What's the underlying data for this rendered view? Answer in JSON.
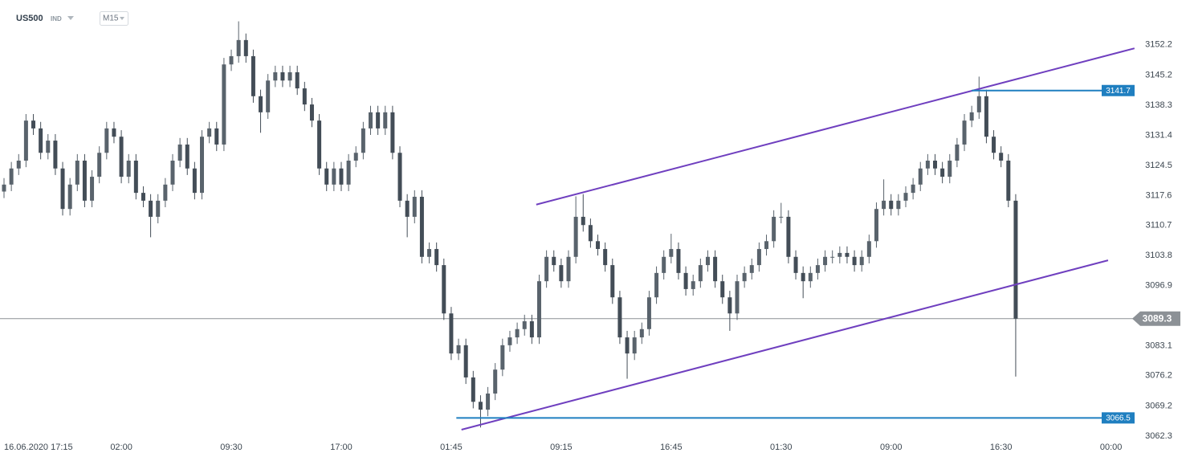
{
  "chart_data": {
    "type": "candlestick",
    "symbol": "US500",
    "symbol_type": "IND",
    "timeframe": "M15",
    "categories": [
      "16.06.2020 17:15",
      null,
      null,
      null,
      null,
      null,
      null,
      null,
      null,
      null,
      null,
      null,
      null,
      null,
      null,
      null,
      "02:00",
      null,
      null,
      null,
      null,
      null,
      null,
      null,
      null,
      null,
      null,
      null,
      null,
      null,
      null,
      "09:30",
      null,
      null,
      null,
      null,
      null,
      null,
      null,
      null,
      null,
      null,
      null,
      null,
      null,
      null,
      "17:00",
      null,
      null,
      null,
      null,
      null,
      null,
      null,
      null,
      null,
      null,
      null,
      null,
      null,
      null,
      "01:45",
      null,
      null,
      null,
      null,
      null,
      null,
      null,
      null,
      null,
      null,
      null,
      null,
      null,
      null,
      "09:15",
      null,
      null,
      null,
      null,
      null,
      null,
      null,
      null,
      null,
      null,
      null,
      null,
      null,
      null,
      "16:45",
      null,
      null,
      null,
      null,
      null,
      null,
      null,
      null,
      null,
      null,
      null,
      null,
      null,
      null,
      "01:30",
      null,
      null,
      null,
      null,
      null,
      null,
      null,
      null,
      null,
      null,
      null,
      null,
      null,
      null,
      "09:00",
      null,
      null,
      null,
      null,
      null,
      null,
      null,
      null,
      null,
      null,
      null,
      null,
      null,
      null,
      "16:30",
      null,
      null,
      null,
      null,
      null,
      null,
      null,
      null,
      null,
      null,
      null,
      null,
      null,
      null,
      "00:00"
    ],
    "open": [
      3118.5,
      3120.1,
      3123.8,
      3125.6,
      3134.8,
      3133.0,
      3127.4,
      3130.2,
      3123.8,
      3114.5,
      3120.1,
      3125.6,
      3116.4,
      3121.9,
      3127.4,
      3133.0,
      3131.1,
      3121.9,
      3125.6,
      3118.2,
      3116.4,
      3112.7,
      3116.4,
      3120.1,
      3125.6,
      3129.3,
      3123.8,
      3118.2,
      3131.1,
      3133.0,
      3129.3,
      3147.7,
      3149.6,
      3153.3,
      3149.6,
      3140.4,
      3136.7,
      3144.0,
      3145.9,
      3144.0,
      3145.9,
      3142.2,
      3138.5,
      3134.8,
      3123.8,
      3120.1,
      3123.8,
      3120.1,
      3125.6,
      3127.4,
      3133.0,
      3136.7,
      3133.0,
      3136.7,
      3127.4,
      3116.4,
      3112.7,
      3117.3,
      3103.5,
      3105.3,
      3101.6,
      3090.5,
      3081.3,
      3083.2,
      3075.8,
      3070.2,
      3068.4,
      3072.1,
      3077.6,
      3083.2,
      3085.0,
      3086.9,
      3088.7,
      3085.0,
      3097.9,
      3103.5,
      3101.6,
      3097.9,
      3103.5,
      3112.7,
      3110.8,
      3107.1,
      3105.3,
      3101.6,
      3094.2,
      3085.0,
      3081.3,
      3085.0,
      3086.9,
      3094.2,
      3099.8,
      3103.5,
      3105.3,
      3099.8,
      3096.1,
      3097.9,
      3101.6,
      3103.5,
      3097.9,
      3094.2,
      3090.5,
      3097.9,
      3099.8,
      3101.6,
      3105.3,
      3107.1,
      3112.7,
      3112.7,
      3103.5,
      3099.8,
      3097.9,
      3099.8,
      3101.6,
      3103.5,
      3103.5,
      3104.4,
      3103.5,
      3101.6,
      3103.5,
      3107.1,
      3114.5,
      3116.4,
      3114.5,
      3116.4,
      3118.2,
      3120.1,
      3123.8,
      3125.6,
      3123.8,
      3121.9,
      3125.6,
      3129.3,
      3134.8,
      3136.7,
      3140.4,
      3131.1,
      3127.4,
      3125.6,
      3116.4,
      null,
      null,
      null,
      null,
      null,
      null,
      null,
      null,
      null,
      null,
      null,
      null,
      null
    ],
    "high": [
      3121.6,
      3125.3,
      3127.1,
      3136.3,
      3136.3,
      3134.5,
      3131.7,
      3131.7,
      3125.3,
      3121.6,
      3127.1,
      3127.1,
      3123.4,
      3128.9,
      3134.5,
      3134.5,
      3132.6,
      3127.1,
      3127.1,
      3119.7,
      3117.9,
      3117.9,
      3121.6,
      3127.1,
      3130.8,
      3130.8,
      3125.3,
      3132.6,
      3134.5,
      3134.5,
      3149.2,
      3151.1,
      3157.6,
      3154.8,
      3151.1,
      3141.9,
      3145.5,
      3147.4,
      3147.4,
      3147.4,
      3147.4,
      3143.7,
      3140.0,
      3136.3,
      3125.3,
      3125.3,
      3125.3,
      3127.1,
      3128.9,
      3134.5,
      3138.2,
      3138.2,
      3138.2,
      3138.2,
      3128.9,
      3117.9,
      3118.8,
      3118.8,
      3106.8,
      3106.8,
      3103.1,
      3092.0,
      3084.7,
      3084.7,
      3077.3,
      3071.7,
      3073.6,
      3079.1,
      3084.7,
      3086.5,
      3088.4,
      3090.2,
      3090.2,
      3099.4,
      3105.0,
      3105.0,
      3103.1,
      3105.0,
      3117.4,
      3117.9,
      3112.3,
      3108.6,
      3106.8,
      3103.1,
      3095.7,
      3086.5,
      3086.5,
      3088.4,
      3095.7,
      3101.3,
      3105.0,
      3108.8,
      3106.8,
      3101.3,
      3099.4,
      3103.1,
      3105.0,
      3105.0,
      3099.4,
      3095.7,
      3099.4,
      3101.3,
      3103.1,
      3106.8,
      3108.6,
      3114.2,
      3115.9,
      3114.2,
      3105.0,
      3101.3,
      3101.3,
      3103.1,
      3105.0,
      3105.0,
      3105.9,
      3105.9,
      3105.0,
      3105.0,
      3108.6,
      3116.0,
      3121.3,
      3117.9,
      3117.9,
      3119.7,
      3121.6,
      3125.3,
      3127.1,
      3127.1,
      3125.3,
      3127.1,
      3130.8,
      3136.3,
      3138.2,
      3144.9,
      3141.9,
      3132.6,
      3128.9,
      3127.1,
      3117.9,
      null,
      null,
      null,
      null,
      null,
      null,
      null,
      null,
      null,
      null,
      null,
      null,
      null
    ],
    "low": [
      3117.0,
      3118.6,
      3122.3,
      3124.1,
      3131.5,
      3125.9,
      3125.9,
      3122.3,
      3113.0,
      3113.0,
      3118.6,
      3114.9,
      3114.9,
      3120.4,
      3125.9,
      3129.6,
      3120.4,
      3120.4,
      3116.7,
      3114.9,
      3108.0,
      3111.2,
      3114.9,
      3118.6,
      3124.1,
      3122.3,
      3116.7,
      3116.7,
      3129.6,
      3127.8,
      3127.8,
      3146.2,
      3148.1,
      3148.1,
      3138.9,
      3132.0,
      3135.2,
      3142.5,
      3142.5,
      3142.5,
      3140.7,
      3137.0,
      3133.3,
      3122.3,
      3118.6,
      3118.6,
      3118.6,
      3118.6,
      3124.1,
      3125.9,
      3131.5,
      3131.5,
      3131.5,
      3125.9,
      3114.9,
      3108.0,
      3111.2,
      3102.0,
      3102.0,
      3100.1,
      3089.0,
      3079.8,
      3079.8,
      3074.3,
      3068.7,
      3064.3,
      3066.9,
      3070.6,
      3076.1,
      3081.7,
      3083.5,
      3085.4,
      3083.5,
      3083.5,
      3096.4,
      3100.1,
      3096.4,
      3096.4,
      3102.0,
      3109.3,
      3105.6,
      3103.8,
      3100.1,
      3092.7,
      3083.5,
      3075.5,
      3079.8,
      3083.5,
      3085.4,
      3092.7,
      3098.3,
      3102.0,
      3098.3,
      3094.6,
      3094.6,
      3096.4,
      3100.1,
      3096.4,
      3092.7,
      3086.5,
      3089.0,
      3096.4,
      3098.3,
      3100.1,
      3103.8,
      3105.6,
      3111.2,
      3102.0,
      3098.3,
      3094.0,
      3096.4,
      3098.3,
      3100.1,
      3102.0,
      3102.0,
      3102.0,
      3100.1,
      3100.1,
      3102.0,
      3105.6,
      3113.0,
      3113.0,
      3113.0,
      3114.9,
      3116.7,
      3118.6,
      3122.3,
      3122.3,
      3120.4,
      3120.4,
      3124.1,
      3127.8,
      3133.3,
      3135.2,
      3129.6,
      3125.9,
      3124.1,
      3114.9,
      3076.0,
      null,
      null,
      null,
      null,
      null,
      null,
      null,
      null,
      null,
      null,
      null,
      null,
      null
    ],
    "close": [
      3120.1,
      3123.8,
      3125.6,
      3134.8,
      3133.0,
      3127.4,
      3130.2,
      3123.8,
      3114.5,
      3120.1,
      3125.6,
      3116.4,
      3121.9,
      3127.4,
      3133.0,
      3131.1,
      3121.9,
      3125.6,
      3118.2,
      3116.4,
      3112.7,
      3116.4,
      3120.1,
      3125.6,
      3129.3,
      3123.8,
      3118.2,
      3131.1,
      3133.0,
      3129.3,
      3147.7,
      3149.6,
      3153.3,
      3149.6,
      3140.4,
      3136.7,
      3144.0,
      3145.9,
      3144.0,
      3145.9,
      3142.2,
      3138.5,
      3134.8,
      3123.8,
      3120.1,
      3123.8,
      3120.1,
      3125.6,
      3127.4,
      3133.0,
      3136.7,
      3133.0,
      3136.7,
      3127.4,
      3116.4,
      3112.7,
      3117.3,
      3103.5,
      3105.3,
      3101.6,
      3090.5,
      3081.3,
      3083.2,
      3075.8,
      3070.2,
      3068.4,
      3072.1,
      3077.6,
      3083.2,
      3085.0,
      3086.9,
      3088.7,
      3085.0,
      3097.9,
      3103.5,
      3101.6,
      3097.9,
      3103.5,
      3112.7,
      3110.8,
      3107.1,
      3105.3,
      3101.6,
      3094.2,
      3085.0,
      3081.3,
      3085.0,
      3086.9,
      3094.2,
      3099.8,
      3103.5,
      3105.3,
      3099.8,
      3096.1,
      3097.9,
      3101.6,
      3103.5,
      3097.9,
      3094.2,
      3090.5,
      3097.9,
      3099.8,
      3101.6,
      3105.3,
      3107.1,
      3112.7,
      3112.7,
      3103.5,
      3099.8,
      3097.9,
      3099.8,
      3101.6,
      3103.5,
      3103.5,
      3104.4,
      3103.5,
      3101.6,
      3103.5,
      3107.1,
      3114.5,
      3116.4,
      3114.5,
      3116.4,
      3118.2,
      3120.1,
      3123.8,
      3125.6,
      3123.8,
      3121.9,
      3125.6,
      3129.3,
      3134.8,
      3136.7,
      3140.4,
      3131.1,
      3127.4,
      3125.6,
      3116.4,
      3089.3,
      null,
      null,
      null,
      null,
      null,
      null,
      null,
      null,
      null,
      null,
      null,
      null,
      null
    ],
    "up_color": "#59636c",
    "down_color": "#434d57",
    "ylim": [
      3061.4,
      3162.5
    ],
    "yticks": [
      3152.2,
      3145.2,
      3138.3,
      3131.4,
      3124.5,
      3117.6,
      3110.7,
      3103.8,
      3096.9,
      3083.1,
      3076.2,
      3069.2,
      3062.3
    ],
    "last": 3089.3,
    "last_color": "#8c9196",
    "trendlines": [
      {
        "color": "#6f3fbf",
        "x": [
          72.6,
          154.2
        ],
        "y": [
          3115.5,
          3151.4
        ]
      },
      {
        "color": "#6f3fbf",
        "x": [
          62.4,
          150.6
        ],
        "y": [
          3063.8,
          3102.7
        ]
      }
    ],
    "hlines": [
      {
        "color": "#1f7fc0",
        "value": 3141.7,
        "from": 132
      },
      {
        "color": "#1f7fc0",
        "value": 3066.5,
        "from": 61.7
      }
    ]
  }
}
